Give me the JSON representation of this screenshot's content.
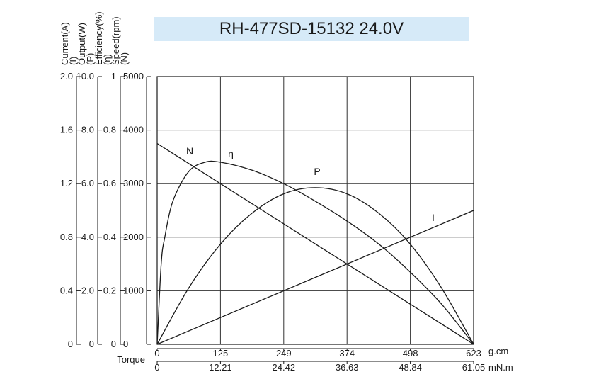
{
  "chart_data": {
    "type": "line",
    "title": "RH-477SD-15132  24.0V",
    "x_axis": {
      "label": "Torque",
      "scales": [
        {
          "unit": "g.cm",
          "ticks": [
            "0",
            "125",
            "249",
            "374",
            "498",
            "623"
          ],
          "range": [
            0,
            623
          ]
        },
        {
          "unit": "mN.m",
          "ticks": [
            "0",
            "12.21",
            "24.42",
            "36.63",
            "48.84",
            "61.05"
          ],
          "range": [
            0,
            61.05
          ]
        }
      ]
    },
    "y_axes": [
      {
        "label": "Current(A)",
        "symbol": "(I)",
        "ticks": [
          "0",
          "0.4",
          "0.8",
          "1.2",
          "1.6",
          "2.0"
        ],
        "range": [
          0,
          2.0
        ]
      },
      {
        "label": "Output(W)",
        "symbol": "(P)",
        "ticks": [
          "0",
          "2.0",
          "4.0",
          "6.0",
          "8.0",
          "10.0"
        ],
        "range": [
          0,
          10.0
        ]
      },
      {
        "label": "Efficiency(%)",
        "symbol": "(η)",
        "ticks": [
          "0",
          "0.2",
          "0.4",
          "0.6",
          "0.8",
          "1"
        ],
        "range": [
          0,
          1
        ]
      },
      {
        "label": "Speed(rpm)",
        "symbol": "(N)",
        "ticks": [
          "0",
          "1000",
          "2000",
          "3000",
          "4000",
          "5000"
        ],
        "range": [
          0,
          5000
        ]
      }
    ],
    "grid": true,
    "series": [
      {
        "name": "N",
        "axis": 3,
        "x": [
          0,
          623
        ],
        "y": [
          3750,
          0
        ]
      },
      {
        "name": "I",
        "axis": 0,
        "x": [
          0,
          623
        ],
        "y": [
          0,
          1.0
        ]
      },
      {
        "name": "P",
        "axis": 1,
        "x": [
          0,
          62,
          125,
          187,
          249,
          311,
          374,
          436,
          498,
          560,
          623
        ],
        "y": [
          0,
          2.1,
          3.75,
          4.9,
          5.62,
          5.85,
          5.62,
          4.9,
          3.75,
          2.1,
          0
        ]
      },
      {
        "name": "η",
        "axis": 2,
        "x": [
          0,
          8,
          15,
          31,
          62,
          94,
          125,
          187,
          249,
          311,
          374,
          436,
          498,
          560,
          623
        ],
        "y": [
          0,
          0.3,
          0.4,
          0.535,
          0.645,
          0.68,
          0.68,
          0.65,
          0.6,
          0.535,
          0.46,
          0.375,
          0.27,
          0.15,
          0
        ]
      }
    ]
  }
}
